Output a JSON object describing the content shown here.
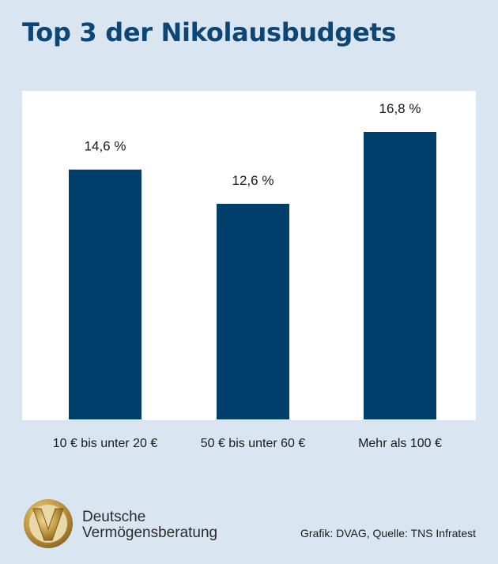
{
  "title": "Top 3 der Nikolausbudgets",
  "chart_data": {
    "type": "bar",
    "categories": [
      "10 € bis unter 20 €",
      "50 € bis unter 60 €",
      "Mehr als 100 €"
    ],
    "values": [
      14.6,
      12.6,
      16.8
    ],
    "value_labels": [
      "14,6 %",
      "12,6 %",
      "16,8 %"
    ],
    "unit": "%",
    "ylim": [
      0,
      19.2
    ],
    "grid": false,
    "bar_color": "#003f6b"
  },
  "footer": {
    "source": "Grafik: DVAG, Quelle: TNS Infratest",
    "brand_line1": "Deutsche",
    "brand_line2": "Vermögensberatung"
  },
  "colors": {
    "background": "#d9e6f1",
    "title": "#0d4574",
    "logo_gold": "#b8933f"
  }
}
